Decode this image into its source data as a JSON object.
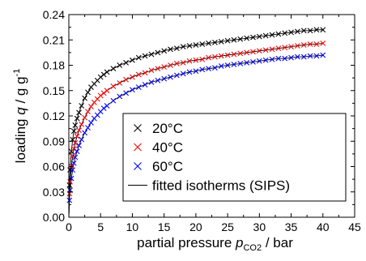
{
  "chart_data": {
    "type": "scatter",
    "xlabel": {
      "prefix": "partial pressure ",
      "var": "p",
      "sub": "CO2",
      "suffix": " / bar"
    },
    "ylabel": {
      "prefix": "loading ",
      "var": "q",
      "suffix": " / g g",
      "sup": "-1"
    },
    "xlim": [
      0,
      45
    ],
    "ylim": [
      0,
      0.24
    ],
    "x_ticks": [
      "0",
      "5",
      "10",
      "15",
      "20",
      "25",
      "30",
      "35",
      "40",
      "45"
    ],
    "y_ticks": [
      "0.00",
      "0.03",
      "0.06",
      "0.09",
      "0.12",
      "0.15",
      "0.18",
      "0.21",
      "0.24"
    ],
    "grid": false,
    "legend_position": "lower-right",
    "series": [
      {
        "name": "20°C",
        "color": "#000000",
        "marker": "x",
        "points": [
          [
            0.1,
            0.038
          ],
          [
            0.2,
            0.056
          ],
          [
            0.4,
            0.078
          ],
          [
            0.6,
            0.092
          ],
          [
            0.8,
            0.102
          ],
          [
            1.0,
            0.109
          ],
          [
            1.3,
            0.117
          ],
          [
            1.6,
            0.124
          ],
          [
            2.0,
            0.132
          ],
          [
            2.5,
            0.141
          ],
          [
            3.0,
            0.148
          ],
          [
            3.5,
            0.154
          ],
          [
            4.0,
            0.158
          ],
          [
            4.5,
            0.162
          ],
          [
            5.0,
            0.166
          ],
          [
            5.5,
            0.169
          ],
          [
            6.0,
            0.172
          ],
          [
            7.0,
            0.176
          ],
          [
            8.0,
            0.18
          ],
          [
            9.0,
            0.183
          ],
          [
            10.0,
            0.186
          ],
          [
            11.0,
            0.189
          ],
          [
            12.0,
            0.191
          ],
          [
            13.0,
            0.193
          ],
          [
            14.0,
            0.195
          ],
          [
            15.0,
            0.197
          ],
          [
            16.0,
            0.199
          ],
          [
            17.0,
            0.2
          ],
          [
            18.0,
            0.202
          ],
          [
            19.0,
            0.203
          ],
          [
            20.0,
            0.204
          ],
          [
            21.0,
            0.205
          ],
          [
            22.0,
            0.206
          ],
          [
            23.0,
            0.207
          ],
          [
            24.0,
            0.208
          ],
          [
            25.0,
            0.209
          ],
          [
            26.0,
            0.21
          ],
          [
            27.0,
            0.211
          ],
          [
            28.0,
            0.212
          ],
          [
            29.0,
            0.213
          ],
          [
            30.0,
            0.214
          ],
          [
            31.0,
            0.215
          ],
          [
            32.0,
            0.216
          ],
          [
            33.0,
            0.217
          ],
          [
            34.0,
            0.218
          ],
          [
            35.0,
            0.219
          ],
          [
            36.0,
            0.22
          ],
          [
            37.0,
            0.221
          ],
          [
            38.0,
            0.221
          ],
          [
            39.0,
            0.222
          ],
          [
            40.0,
            0.222
          ]
        ]
      },
      {
        "name": "40°C",
        "color": "#ff0000",
        "marker": "x",
        "points": [
          [
            0.1,
            0.028
          ],
          [
            0.2,
            0.042
          ],
          [
            0.4,
            0.06
          ],
          [
            0.6,
            0.072
          ],
          [
            0.8,
            0.081
          ],
          [
            1.0,
            0.088
          ],
          [
            1.3,
            0.096
          ],
          [
            1.6,
            0.103
          ],
          [
            2.0,
            0.11
          ],
          [
            2.5,
            0.118
          ],
          [
            3.0,
            0.125
          ],
          [
            3.5,
            0.131
          ],
          [
            4.0,
            0.136
          ],
          [
            4.5,
            0.14
          ],
          [
            5.0,
            0.144
          ],
          [
            5.5,
            0.147
          ],
          [
            6.0,
            0.15
          ],
          [
            7.0,
            0.155
          ],
          [
            8.0,
            0.159
          ],
          [
            9.0,
            0.163
          ],
          [
            10.0,
            0.166
          ],
          [
            11.0,
            0.169
          ],
          [
            12.0,
            0.171
          ],
          [
            13.0,
            0.174
          ],
          [
            14.0,
            0.176
          ],
          [
            15.0,
            0.178
          ],
          [
            16.0,
            0.18
          ],
          [
            17.0,
            0.182
          ],
          [
            18.0,
            0.183
          ],
          [
            19.0,
            0.185
          ],
          [
            20.0,
            0.186
          ],
          [
            21.0,
            0.187
          ],
          [
            22.0,
            0.189
          ],
          [
            23.0,
            0.19
          ],
          [
            24.0,
            0.191
          ],
          [
            25.0,
            0.192
          ],
          [
            26.0,
            0.193
          ],
          [
            27.0,
            0.194
          ],
          [
            28.0,
            0.195
          ],
          [
            29.0,
            0.196
          ],
          [
            30.0,
            0.197
          ],
          [
            31.0,
            0.198
          ],
          [
            32.0,
            0.199
          ],
          [
            33.0,
            0.2
          ],
          [
            34.0,
            0.201
          ],
          [
            35.0,
            0.202
          ],
          [
            36.0,
            0.203
          ],
          [
            37.0,
            0.204
          ],
          [
            38.0,
            0.205
          ],
          [
            39.0,
            0.205
          ],
          [
            40.0,
            0.206
          ]
        ]
      },
      {
        "name": "60°C",
        "color": "#0000ff",
        "marker": "x",
        "points": [
          [
            0.1,
            0.02
          ],
          [
            0.2,
            0.032
          ],
          [
            0.4,
            0.046
          ],
          [
            0.6,
            0.056
          ],
          [
            0.8,
            0.064
          ],
          [
            1.0,
            0.071
          ],
          [
            1.3,
            0.078
          ],
          [
            1.6,
            0.085
          ],
          [
            2.0,
            0.092
          ],
          [
            2.5,
            0.1
          ],
          [
            3.0,
            0.106
          ],
          [
            3.5,
            0.112
          ],
          [
            4.0,
            0.117
          ],
          [
            4.5,
            0.121
          ],
          [
            5.0,
            0.125
          ],
          [
            5.5,
            0.129
          ],
          [
            6.0,
            0.132
          ],
          [
            7.0,
            0.138
          ],
          [
            8.0,
            0.143
          ],
          [
            9.0,
            0.147
          ],
          [
            10.0,
            0.151
          ],
          [
            11.0,
            0.154
          ],
          [
            12.0,
            0.157
          ],
          [
            13.0,
            0.16
          ],
          [
            14.0,
            0.162
          ],
          [
            15.0,
            0.164
          ],
          [
            16.0,
            0.166
          ],
          [
            17.0,
            0.168
          ],
          [
            18.0,
            0.17
          ],
          [
            19.0,
            0.172
          ],
          [
            20.0,
            0.173
          ],
          [
            21.0,
            0.175
          ],
          [
            22.0,
            0.176
          ],
          [
            23.0,
            0.177
          ],
          [
            24.0,
            0.179
          ],
          [
            25.0,
            0.18
          ],
          [
            26.0,
            0.181
          ],
          [
            27.0,
            0.182
          ],
          [
            28.0,
            0.183
          ],
          [
            29.0,
            0.184
          ],
          [
            30.0,
            0.185
          ],
          [
            31.0,
            0.186
          ],
          [
            32.0,
            0.187
          ],
          [
            33.0,
            0.188
          ],
          [
            34.0,
            0.188
          ],
          [
            35.0,
            0.189
          ],
          [
            36.0,
            0.19
          ],
          [
            37.0,
            0.19
          ],
          [
            38.0,
            0.191
          ],
          [
            39.0,
            0.191
          ],
          [
            40.0,
            0.192
          ]
        ]
      }
    ],
    "fit": {
      "name": "fitted isotherms (SIPS)",
      "color": "#000000",
      "note": "solid lines drawn through each series"
    }
  }
}
